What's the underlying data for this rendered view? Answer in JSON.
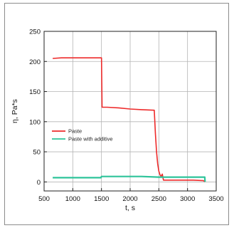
{
  "chart_data": {
    "type": "line",
    "xlabel": "t, s",
    "ylabel": "η, Pa*s",
    "xlim": [
      500,
      3500
    ],
    "ylim": [
      -15,
      250
    ],
    "xticks": [
      500,
      1000,
      1500,
      2000,
      2500,
      3000,
      3500
    ],
    "yticks": [
      0,
      50,
      100,
      150,
      200,
      250
    ],
    "grid": true,
    "legend_position": "lower-left",
    "series": [
      {
        "name": "Paste",
        "color": "#ee2b2b",
        "points": [
          [
            650,
            205
          ],
          [
            800,
            206
          ],
          [
            1000,
            206
          ],
          [
            1200,
            206
          ],
          [
            1400,
            206
          ],
          [
            1500,
            206
          ],
          [
            1510,
            124
          ],
          [
            1600,
            124
          ],
          [
            1800,
            123
          ],
          [
            2000,
            121
          ],
          [
            2200,
            120
          ],
          [
            2420,
            119
          ],
          [
            2440,
            80
          ],
          [
            2460,
            50
          ],
          [
            2480,
            30
          ],
          [
            2500,
            18
          ],
          [
            2520,
            12
          ],
          [
            2540,
            9
          ],
          [
            2560,
            13
          ],
          [
            2580,
            3
          ],
          [
            2700,
            3
          ],
          [
            2900,
            3
          ],
          [
            3100,
            3
          ],
          [
            3280,
            2
          ],
          [
            3300,
            0
          ]
        ]
      },
      {
        "name": "Paste with additive",
        "color": "#2ec49a",
        "points": [
          [
            650,
            7
          ],
          [
            1000,
            7
          ],
          [
            1490,
            7
          ],
          [
            1500,
            9
          ],
          [
            1800,
            9
          ],
          [
            2200,
            9
          ],
          [
            2500,
            8
          ],
          [
            2800,
            8
          ],
          [
            3100,
            8
          ],
          [
            3300,
            8
          ],
          [
            3305,
            0
          ]
        ]
      }
    ]
  }
}
